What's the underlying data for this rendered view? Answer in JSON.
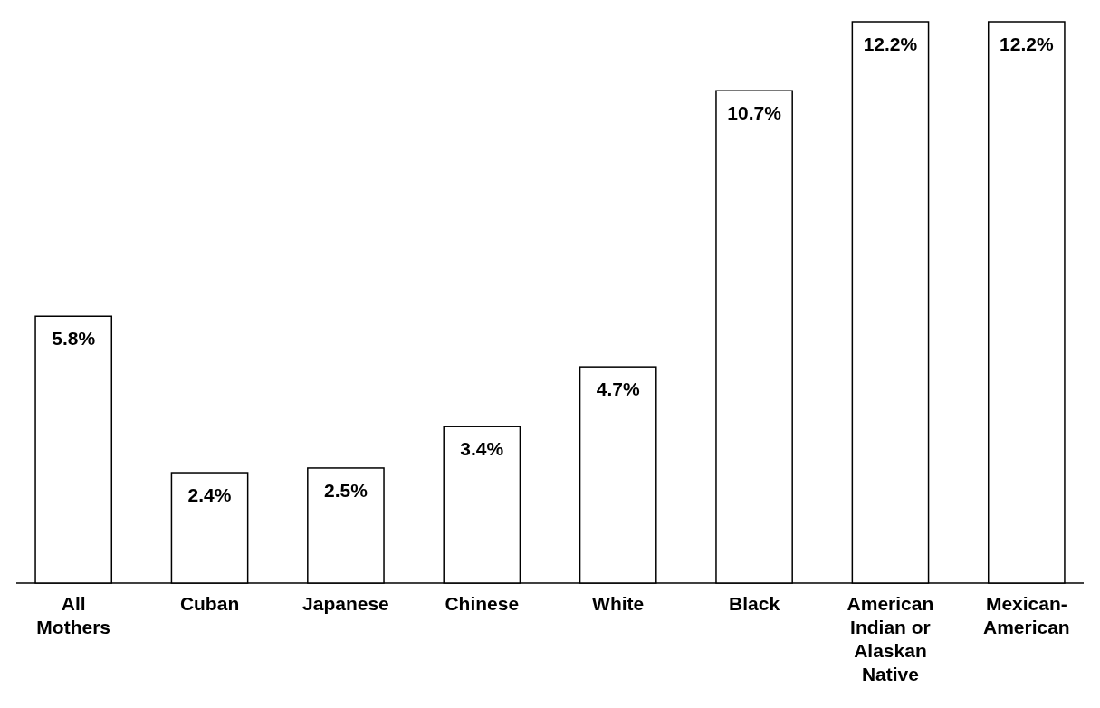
{
  "chart_data": {
    "type": "bar",
    "categories": [
      "All Mothers",
      "Cuban",
      "Japanese",
      "Chinese",
      "White",
      "Black",
      "American Indian or Alaskan Native",
      "Mexican-American"
    ],
    "values": [
      5.8,
      2.4,
      2.5,
      3.4,
      4.7,
      10.7,
      12.2,
      12.2
    ],
    "value_labels": [
      "5.8%",
      "2.4%",
      "2.5%",
      "3.4%",
      "4.7%",
      "10.7%",
      "12.2%",
      "12.2%"
    ],
    "color": "#ffffff"
  }
}
